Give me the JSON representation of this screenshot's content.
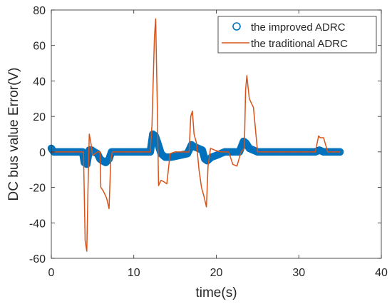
{
  "chart_data": {
    "type": "line",
    "title": "",
    "xlabel": "time(s)",
    "ylabel": "DC bus value Error(V)",
    "xlim": [
      0,
      40
    ],
    "ylim": [
      -60,
      80
    ],
    "xticks": [
      0,
      10,
      20,
      30,
      40
    ],
    "yticks": [
      -60,
      -40,
      -20,
      0,
      20,
      40,
      60,
      80
    ],
    "xtick_labels": [
      "0",
      "10",
      "20",
      "30",
      "40"
    ],
    "ytick_labels": [
      "-60",
      "-40",
      "-20",
      "0",
      "20",
      "40",
      "60",
      "80"
    ],
    "grid": false,
    "legend_position": "top-right",
    "series": [
      {
        "name": "the improved ADRC",
        "style": "circle-markers",
        "color": "#0072BD",
        "x": [
          0,
          0.3,
          1,
          2,
          3,
          3.8,
          4.0,
          4.3,
          4.6,
          4.9,
          5.2,
          5.6,
          5.9,
          6.2,
          6.6,
          7.0,
          7.3,
          7.8,
          9,
          10,
          11,
          12,
          12.3,
          12.6,
          12.9,
          13.3,
          13.8,
          14.5,
          15.5,
          16.5,
          17.0,
          17.3,
          17.8,
          18.3,
          18.6,
          18.9,
          19.4,
          20,
          21,
          22,
          22.8,
          23.3,
          23.6,
          24.0,
          24.5,
          25,
          26,
          27,
          28,
          29,
          30,
          31,
          32,
          32.5,
          33.0,
          33.5,
          34,
          34.5,
          35
        ],
        "y": [
          2,
          0,
          0,
          0,
          0,
          0,
          -6,
          -7,
          1,
          1,
          0,
          -1,
          -4,
          -5,
          -6,
          -4,
          0,
          0,
          0,
          0,
          0,
          0,
          10,
          9,
          5,
          -1,
          -3,
          -3,
          -2,
          -1,
          4,
          3,
          2,
          1,
          -4,
          -5,
          -3,
          -2,
          0,
          0,
          0,
          6,
          5,
          2,
          1,
          0,
          0,
          0,
          0,
          0,
          0,
          0,
          0,
          1,
          0,
          0,
          0,
          0,
          0
        ]
      },
      {
        "name": "the traditional ADRC",
        "style": "line",
        "color": "#D95319",
        "x": [
          0,
          0.3,
          1,
          2,
          3,
          3.9,
          4.1,
          4.3,
          4.45,
          4.6,
          4.8,
          5.0,
          5.3,
          5.6,
          5.9,
          6.0,
          6.3,
          6.7,
          7.0,
          7.2,
          7.4,
          8,
          9,
          10,
          11,
          12.0,
          12.2,
          12.5,
          12.65,
          12.85,
          13.0,
          13.3,
          13.7,
          14.0,
          14.4,
          15,
          16,
          16.7,
          16.9,
          17.1,
          17.3,
          17.6,
          17.9,
          18.2,
          18.5,
          18.8,
          19.0,
          19.3,
          19.8,
          20.5,
          21.5,
          22.0,
          22.5,
          23.0,
          23.4,
          23.55,
          23.7,
          24.0,
          24.5,
          25,
          26,
          27,
          28,
          29,
          30,
          31,
          32,
          32.4,
          32.6,
          33.0,
          33.5,
          34,
          34.5,
          35
        ],
        "y": [
          0,
          0,
          0,
          0,
          0,
          0,
          -50,
          -56,
          -20,
          10,
          5,
          -2,
          -1,
          0,
          0,
          -20,
          -22,
          -26,
          -32,
          -5,
          0,
          0,
          0,
          0,
          0,
          0,
          15,
          65,
          75,
          25,
          -19,
          -16,
          -17,
          -18,
          -1,
          0,
          0,
          0,
          20,
          23,
          10,
          5,
          -10,
          -20,
          -25,
          -31,
          -8,
          2,
          1,
          0,
          0,
          -7,
          -8,
          0,
          2,
          35,
          43,
          30,
          25,
          0,
          0,
          0,
          0,
          0,
          0,
          0,
          0,
          9,
          8,
          8,
          0,
          0,
          0,
          0
        ]
      }
    ]
  },
  "colors": {
    "axis": "#262626",
    "improved": "#0072BD",
    "traditional": "#D95319"
  }
}
